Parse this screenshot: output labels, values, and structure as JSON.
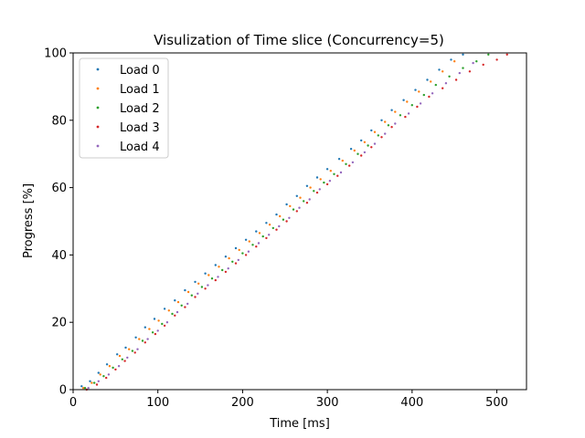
{
  "chart_data": {
    "type": "scatter",
    "title": "Visulization of Time slice (Concurrency=5)",
    "xlabel": "Time [ms]",
    "ylabel": "Progress [%]",
    "xlim": [
      0,
      535
    ],
    "ylim": [
      0,
      100
    ],
    "x_ticks": [
      0,
      100,
      200,
      300,
      400,
      500
    ],
    "y_ticks": [
      0,
      20,
      40,
      60,
      80,
      100
    ],
    "grid": false,
    "legend_position": "top-left",
    "series": [
      {
        "name": "Load 0",
        "color": "#1f77b4",
        "x": [
          10,
          20,
          30,
          40,
          52,
          62,
          74,
          85,
          96,
          108,
          120,
          132,
          144,
          156,
          168,
          180,
          192,
          204,
          216,
          228,
          240,
          252,
          264,
          276,
          288,
          300,
          314,
          328,
          340,
          352,
          364,
          376,
          390,
          404,
          418,
          432,
          446,
          460
        ],
        "y": [
          1,
          2.5,
          5,
          7.5,
          10.5,
          12.5,
          15.5,
          18.5,
          21,
          24,
          26.5,
          29.5,
          32,
          34.5,
          37,
          39.5,
          42,
          44.5,
          47,
          49.5,
          52,
          55,
          57.5,
          60.5,
          63,
          65.5,
          68.5,
          71.5,
          74,
          77,
          80,
          83,
          86,
          89,
          92,
          95,
          98,
          99.5
        ]
      },
      {
        "name": "Load 1",
        "color": "#ff7f0e",
        "x": [
          12,
          22,
          32,
          43,
          55,
          66,
          78,
          90,
          101,
          113,
          124,
          136,
          148,
          160,
          172,
          184,
          196,
          208,
          220,
          232,
          244,
          256,
          268,
          280,
          292,
          304,
          318,
          332,
          344,
          356,
          368,
          380,
          394,
          408,
          422,
          436,
          450
        ],
        "y": [
          0.5,
          2,
          4.5,
          7,
          10,
          12,
          15,
          18,
          20.5,
          23.5,
          26,
          29,
          31.5,
          34,
          36.5,
          39,
          41.5,
          44,
          46.5,
          49,
          51.5,
          54.5,
          57,
          60,
          62.5,
          65,
          68,
          71,
          73.5,
          76.5,
          79.5,
          82.5,
          85.5,
          88.5,
          91.5,
          94.5,
          97.5
        ]
      },
      {
        "name": "Load 2",
        "color": "#2ca02c",
        "x": [
          14,
          25,
          36,
          47,
          58,
          70,
          82,
          94,
          105,
          117,
          128,
          140,
          152,
          164,
          176,
          188,
          200,
          212,
          224,
          236,
          248,
          260,
          272,
          284,
          296,
          308,
          322,
          336,
          348,
          360,
          372,
          386,
          400,
          414,
          428,
          444,
          460,
          476,
          490
        ],
        "y": [
          0.5,
          2,
          4,
          6.5,
          9,
          11.5,
          14.5,
          17,
          19.5,
          22.5,
          25,
          28,
          30.5,
          33,
          35.5,
          38,
          40.5,
          43,
          45.5,
          48,
          50.5,
          53.5,
          56,
          59,
          61.5,
          64,
          67,
          70,
          72.5,
          75.5,
          78.5,
          81.5,
          84.5,
          87.5,
          90.5,
          93,
          95.5,
          97.5,
          99.5
        ]
      },
      {
        "name": "Load 3",
        "color": "#d62728",
        "x": [
          16,
          28,
          39,
          50,
          61,
          73,
          85,
          97,
          108,
          120,
          132,
          144,
          156,
          168,
          180,
          192,
          204,
          216,
          228,
          240,
          252,
          264,
          276,
          288,
          300,
          312,
          326,
          340,
          352,
          364,
          376,
          392,
          406,
          420,
          436,
          452,
          468,
          484,
          500,
          512
        ],
        "y": [
          0,
          1.5,
          3.5,
          6,
          8.5,
          11,
          14,
          16.5,
          19,
          22,
          24.5,
          27.5,
          30,
          32.5,
          35,
          37.5,
          40,
          42.5,
          45,
          47.5,
          50,
          53,
          55.5,
          58.5,
          61,
          63.5,
          66.5,
          69.5,
          72,
          75,
          78,
          81,
          84,
          87,
          89.5,
          92,
          94.5,
          96.5,
          98,
          99.5
        ]
      },
      {
        "name": "Load 4",
        "color": "#9467bd",
        "x": [
          18,
          30,
          42,
          54,
          64,
          76,
          88,
          100,
          111,
          123,
          135,
          147,
          159,
          171,
          183,
          195,
          207,
          219,
          231,
          243,
          255,
          267,
          279,
          291,
          303,
          316,
          330,
          344,
          356,
          368,
          380,
          396,
          410,
          424,
          440,
          456,
          472
        ],
        "y": [
          0.5,
          2.5,
          4.5,
          7,
          9.5,
          12,
          15,
          17.5,
          20,
          23,
          25.5,
          28.5,
          31,
          33.5,
          36,
          38.5,
          41,
          43.5,
          46,
          48.5,
          51,
          54,
          56.5,
          59.5,
          62,
          64.5,
          67.5,
          70.5,
          73,
          76,
          79,
          82,
          85,
          88,
          91,
          94,
          97
        ]
      }
    ]
  }
}
